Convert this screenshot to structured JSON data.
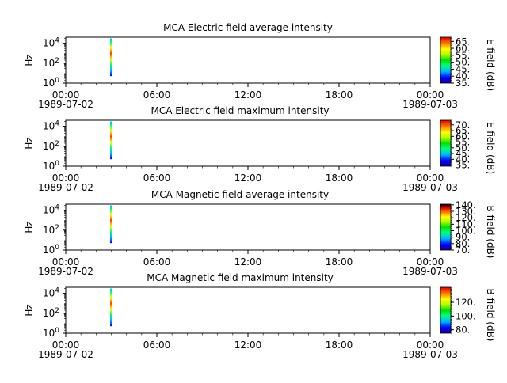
{
  "chart_data": [
    {
      "type": "heatmap",
      "title": "MCA  Electric field average intensity",
      "ylabel": "Hz",
      "y_scale": "log",
      "y_ticks": [
        {
          "v": 1,
          "base": "10",
          "exp": "0"
        },
        {
          "v": 100,
          "base": "10",
          "exp": "2"
        },
        {
          "v": 10000,
          "base": "10",
          "exp": "4"
        }
      ],
      "x_ticks": [
        {
          "label": "00:00",
          "date": "1989-07-02"
        },
        {
          "label": "06:00",
          "date": ""
        },
        {
          "label": "12:00",
          "date": ""
        },
        {
          "label": "18:00",
          "date": ""
        },
        {
          "label": "00:00",
          "date": "1989-07-03"
        }
      ],
      "x_minor_hours": 1,
      "data_strip": {
        "hour": 3.0,
        "freq_min": 5,
        "freq_max": 30000
      },
      "colorbar": {
        "label": "E field (dB)",
        "min": 35,
        "max": 68,
        "ticks": [
          "35.",
          "40.",
          "45.",
          "50.",
          "55.",
          "60.",
          "65."
        ],
        "tick_values": [
          35,
          40,
          45,
          50,
          55,
          60,
          65
        ]
      }
    },
    {
      "type": "heatmap",
      "title": "MCA  Electric field maximum intensity",
      "ylabel": "Hz",
      "y_scale": "log",
      "y_ticks": [
        {
          "v": 1,
          "base": "10",
          "exp": "0"
        },
        {
          "v": 100,
          "base": "10",
          "exp": "2"
        },
        {
          "v": 10000,
          "base": "10",
          "exp": "4"
        }
      ],
      "x_ticks": [
        {
          "label": "00:00",
          "date": "1989-07-02"
        },
        {
          "label": "06:00",
          "date": ""
        },
        {
          "label": "12:00",
          "date": ""
        },
        {
          "label": "18:00",
          "date": ""
        },
        {
          "label": "00:00",
          "date": "1989-07-03"
        }
      ],
      "x_minor_hours": 1,
      "data_strip": {
        "hour": 3.0,
        "freq_min": 5,
        "freq_max": 30000
      },
      "colorbar": {
        "label": "E field (dB)",
        "min": 34,
        "max": 74,
        "ticks": [
          "35.",
          "40.",
          "45.",
          "50.",
          "55.",
          "60.",
          "65.",
          "70."
        ],
        "tick_values": [
          35,
          40,
          45,
          50,
          55,
          60,
          65,
          70
        ]
      }
    },
    {
      "type": "heatmap",
      "title": "MCA  Magnetic field average intensity",
      "ylabel": "Hz",
      "y_scale": "log",
      "y_ticks": [
        {
          "v": 1,
          "base": "10",
          "exp": "0"
        },
        {
          "v": 100,
          "base": "10",
          "exp": "2"
        },
        {
          "v": 10000,
          "base": "10",
          "exp": "4"
        }
      ],
      "x_ticks": [
        {
          "label": "00:00",
          "date": "1989-07-02"
        },
        {
          "label": "06:00",
          "date": ""
        },
        {
          "label": "12:00",
          "date": ""
        },
        {
          "label": "18:00",
          "date": ""
        },
        {
          "label": "00:00",
          "date": "1989-07-03"
        }
      ],
      "x_minor_hours": 1,
      "data_strip": {
        "hour": 3.0,
        "freq_min": 5,
        "freq_max": 30000
      },
      "colorbar": {
        "label": "B field (dB)",
        "min": 70,
        "max": 141,
        "ticks": [
          "70.",
          "80.",
          "90.",
          "100.",
          "110.",
          "120.",
          "130.",
          "140."
        ],
        "tick_values": [
          70,
          80,
          90,
          100,
          110,
          120,
          130,
          140
        ]
      }
    },
    {
      "type": "heatmap",
      "title": "MCA  Magnetic field maximum intensity",
      "ylabel": "Hz",
      "y_scale": "log",
      "y_ticks": [
        {
          "v": 1,
          "base": "10",
          "exp": "0"
        },
        {
          "v": 100,
          "base": "10",
          "exp": "2"
        },
        {
          "v": 10000,
          "base": "10",
          "exp": "4"
        }
      ],
      "x_ticks": [
        {
          "label": "00:00",
          "date": "1989-07-02"
        },
        {
          "label": "06:00",
          "date": ""
        },
        {
          "label": "12:00",
          "date": ""
        },
        {
          "label": "18:00",
          "date": ""
        },
        {
          "label": "00:00",
          "date": "1989-07-03"
        }
      ],
      "x_minor_hours": 1,
      "data_strip": {
        "hour": 3.0,
        "freq_min": 5,
        "freq_max": 30000
      },
      "colorbar": {
        "label": "B field (dB)",
        "min": 75,
        "max": 142,
        "ticks": [
          "80.",
          "100.",
          "120."
        ],
        "tick_values": [
          80,
          100,
          120
        ]
      }
    }
  ]
}
